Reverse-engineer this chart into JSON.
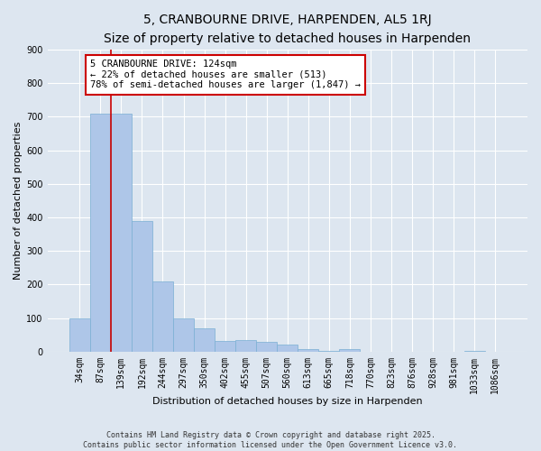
{
  "title": "5, CRANBOURNE DRIVE, HARPENDEN, AL5 1RJ",
  "subtitle": "Size of property relative to detached houses in Harpenden",
  "xlabel": "Distribution of detached houses by size in Harpenden",
  "ylabel": "Number of detached properties",
  "categories": [
    "34sqm",
    "87sqm",
    "139sqm",
    "192sqm",
    "244sqm",
    "297sqm",
    "350sqm",
    "402sqm",
    "455sqm",
    "507sqm",
    "560sqm",
    "613sqm",
    "665sqm",
    "718sqm",
    "770sqm",
    "823sqm",
    "876sqm",
    "928sqm",
    "981sqm",
    "1033sqm",
    "1086sqm"
  ],
  "values": [
    100,
    710,
    710,
    390,
    210,
    100,
    70,
    33,
    35,
    28,
    22,
    8,
    3,
    8,
    0,
    0,
    0,
    0,
    0,
    3,
    0
  ],
  "bar_color": "#aec6e8",
  "bar_edge_color": "#7aafd4",
  "vline_color": "#cc0000",
  "vline_pos": 1.5,
  "annotation_box_text": "5 CRANBOURNE DRIVE: 124sqm\n← 22% of detached houses are smaller (513)\n78% of semi-detached houses are larger (1,847) →",
  "annotation_box_color": "#cc0000",
  "ylim": [
    0,
    900
  ],
  "yticks": [
    0,
    100,
    200,
    300,
    400,
    500,
    600,
    700,
    800,
    900
  ],
  "bg_color": "#dde6f0",
  "grid_color": "#ffffff",
  "footer_line1": "Contains HM Land Registry data © Crown copyright and database right 2025.",
  "footer_line2": "Contains public sector information licensed under the Open Government Licence v3.0.",
  "title_fontsize": 10,
  "subtitle_fontsize": 8.5,
  "axis_label_fontsize": 8,
  "tick_fontsize": 7,
  "annotation_fontsize": 7.5,
  "footer_fontsize": 6
}
